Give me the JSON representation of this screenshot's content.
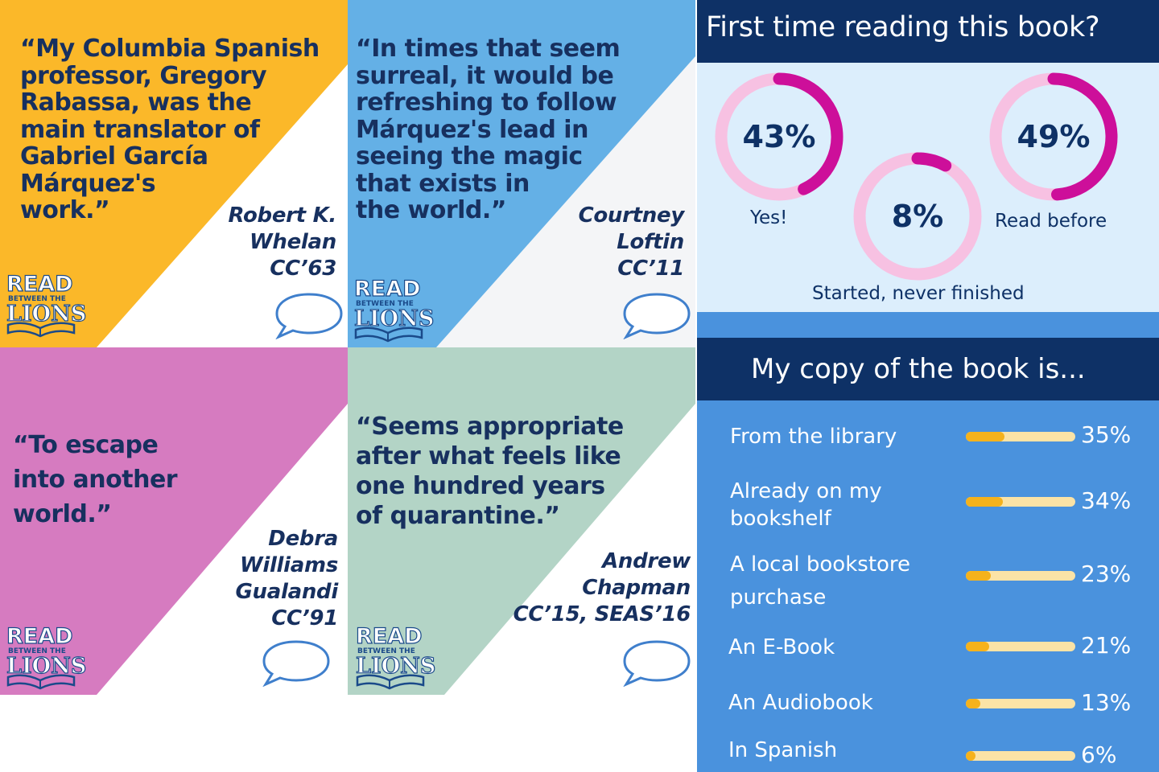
{
  "colors": {
    "navy": "#17305f",
    "yellow": "#fbb829",
    "blue": "#64b0e6",
    "pink": "#d67bc0",
    "sage": "#b3d4c6",
    "magenta": "#cd0f9a",
    "light_pink": "#f7c1e2",
    "bar_track": "#fbe3a6",
    "bar_fill": "#f5b21c"
  },
  "logo": {
    "line1": "READ",
    "line2": "BETWEEN THE",
    "line3": "LIONS"
  },
  "tiles": [
    {
      "quote": [
        "“My Columbia Spanish",
        "professor, Gregory",
        "Rabassa, was the",
        "main translator of",
        "Gabriel García",
        "Márquez's",
        "work.”"
      ],
      "author": [
        "Robert K.",
        "Whelan",
        "CC’63"
      ]
    },
    {
      "quote": [
        "“In times that seem",
        "surreal, it would be",
        "refreshing to follow",
        "Márquez's lead in",
        "seeing the magic",
        "that exists in",
        "the world.”"
      ],
      "author": [
        "Courtney",
        "Loftin",
        "CC’11"
      ]
    },
    {
      "quote": [
        "“To escape",
        "into another",
        "world.”"
      ],
      "author": [
        "Debra",
        "Williams",
        "Gualandi",
        "CC’91"
      ]
    },
    {
      "quote": [
        "“Seems appropriate",
        "after what feels like",
        "one hundred years",
        "of quarantine.”"
      ],
      "author": [
        "Andrew",
        "Chapman",
        "CC’15, SEAS’16"
      ]
    }
  ],
  "first_time": {
    "title": "First time reading this book?",
    "items": [
      {
        "pct_label": "43%",
        "value": 43,
        "label": "Yes!"
      },
      {
        "pct_label": "8%",
        "value": 8,
        "label": "Started, never finished"
      },
      {
        "pct_label": "49%",
        "value": 49,
        "label": "Read before"
      }
    ]
  },
  "copy": {
    "title": "My copy of the book is...",
    "rows": [
      {
        "label": "From the library",
        "pct_label": "35%",
        "value": 35
      },
      {
        "label": "Already on my\nbookshelf",
        "pct_label": "34%",
        "value": 34
      },
      {
        "label": "A local bookstore\npurchase",
        "pct_label": "23%",
        "value": 23
      },
      {
        "label": "An E-Book",
        "pct_label": "21%",
        "value": 21
      },
      {
        "label": "An Audiobook",
        "pct_label": "13%",
        "value": 13
      },
      {
        "label": "In Spanish",
        "pct_label": "6%",
        "value": 6
      }
    ]
  }
}
